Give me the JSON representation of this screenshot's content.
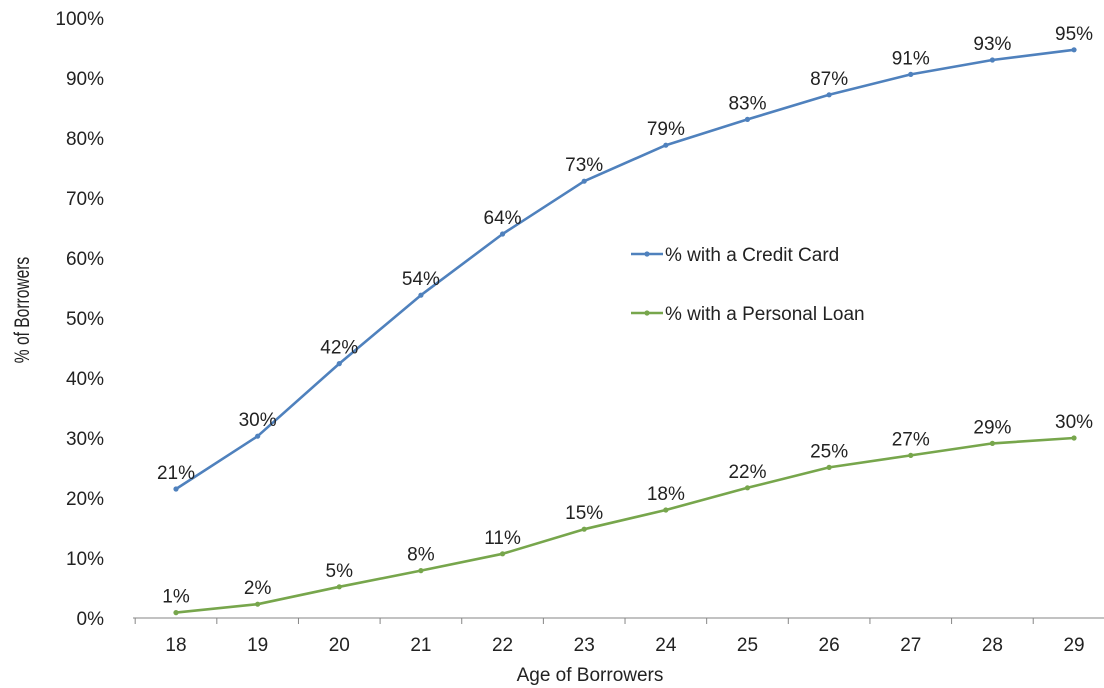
{
  "chart_data": {
    "type": "line",
    "x": [
      18,
      19,
      20,
      21,
      22,
      23,
      24,
      25,
      26,
      27,
      28,
      29
    ],
    "x_tick_labels": [
      "18",
      "19",
      "20",
      "21",
      "22",
      "23",
      "24",
      "25",
      "26",
      "27",
      "28",
      "29"
    ],
    "xlabel": "Age of Borrowers",
    "ylabel": "% of Borrowers",
    "ylim": [
      0,
      100
    ],
    "y_ticks": [
      0,
      10,
      20,
      30,
      40,
      50,
      60,
      70,
      80,
      90,
      100
    ],
    "y_tick_labels": [
      "0%",
      "10%",
      "20%",
      "30%",
      "40%",
      "50%",
      "60%",
      "70%",
      "80%",
      "90%",
      "100%"
    ],
    "grid": false,
    "legend_position": "right",
    "series": [
      {
        "name": "% with a Credit Card",
        "color": "#4f81bd",
        "values": [
          21.5,
          30.3,
          42.4,
          53.8,
          64.0,
          72.8,
          78.8,
          83.1,
          87.2,
          90.6,
          93.0,
          94.7
        ],
        "labels": [
          "21%",
          "30%",
          "42%",
          "54%",
          "64%",
          "73%",
          "79%",
          "83%",
          "87%",
          "91%",
          "93%",
          "95%"
        ]
      },
      {
        "name": "% with a Personal Loan",
        "color": "#77a64c",
        "values": [
          0.9,
          2.3,
          5.2,
          7.9,
          10.7,
          14.8,
          18.0,
          21.7,
          25.1,
          27.1,
          29.1,
          30.0
        ],
        "labels": [
          "1%",
          "2%",
          "5%",
          "8%",
          "11%",
          "15%",
          "18%",
          "22%",
          "25%",
          "27%",
          "29%",
          "30%"
        ]
      }
    ]
  }
}
